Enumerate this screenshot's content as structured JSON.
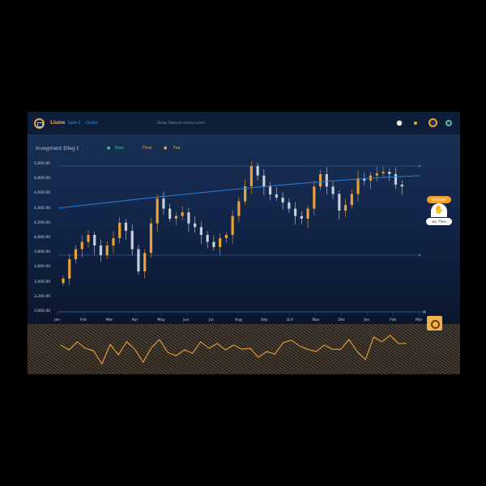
{
  "header": {
    "brand": "Liune",
    "nav_1": "Sale-1",
    "nav_2": "Guide",
    "center_text": "Dallas Datacall mmmu ccmm",
    "icons": [
      "eye-icon",
      "dot-icon",
      "wallet-icon",
      "profile-icon"
    ]
  },
  "chart_header": {
    "title": "Invegment Elleg t",
    "legend": [
      {
        "label": "Rise",
        "color": "#2ecc8f"
      },
      {
        "label": "Flow",
        "color": "#e9a13a"
      },
      {
        "label": "Fee",
        "color": "#e9a13a"
      }
    ]
  },
  "side": {
    "button_label": "Endealer",
    "pill_label": "wa. Pilea"
  },
  "colors": {
    "up": "#e9a13a",
    "down": "#c9cfd8",
    "ma": "#2b7fd6",
    "accent": "#f0a02c"
  },
  "chart_data": {
    "type": "candlestick",
    "ylim": [
      3000,
      5000
    ],
    "ytick_labels": [
      "5,000.00",
      "4,800.00",
      "4,600.00",
      "4,400.00",
      "4,200.00",
      "4,000.00",
      "3,800.00",
      "3,600.00",
      "3,400.00",
      "3,200.00",
      "3,000.00"
    ],
    "xtick_labels": [
      "Jan",
      "Feb",
      "Mar",
      "Apr",
      "May",
      "Jun",
      "Jul",
      "Aug",
      "Sep",
      "Oct",
      "Nov",
      "Dec",
      "Jan",
      "Feb",
      "Mar"
    ],
    "closes": [
      3450,
      3714,
      3850,
      3950,
      4044,
      3900,
      3769,
      3900,
      4000,
      4209,
      4100,
      3850,
      3549,
      3800,
      4200,
      4538,
      4400,
      4264,
      4300,
      4350,
      4200,
      4150,
      4044,
      3950,
      3879,
      4000,
      4044,
      4300,
      4500,
      4703,
      4978,
      4850,
      4700,
      4593,
      4550,
      4484,
      4400,
      4300,
      4264,
      4400,
      4700,
      4868,
      4700,
      4600,
      4374,
      4450,
      4600,
      4813,
      4780,
      4850,
      4880,
      4900,
      4870,
      4725,
      4700
    ],
    "moving_average": {
      "start": 4407,
      "end": 4846
    },
    "levels": [
      4978,
      3769
    ],
    "oscillator": {
      "ylim": [
        0,
        100
      ],
      "values": [
        60,
        45,
        70,
        50,
        42,
        2,
        62,
        30,
        70,
        47,
        7,
        52,
        77,
        37,
        27,
        45,
        35,
        70,
        50,
        65,
        45,
        60,
        47,
        50,
        22,
        40,
        32,
        67,
        75,
        57,
        47,
        40,
        60,
        47,
        47,
        77,
        40,
        15,
        85,
        70,
        90,
        65,
        65
      ]
    }
  }
}
